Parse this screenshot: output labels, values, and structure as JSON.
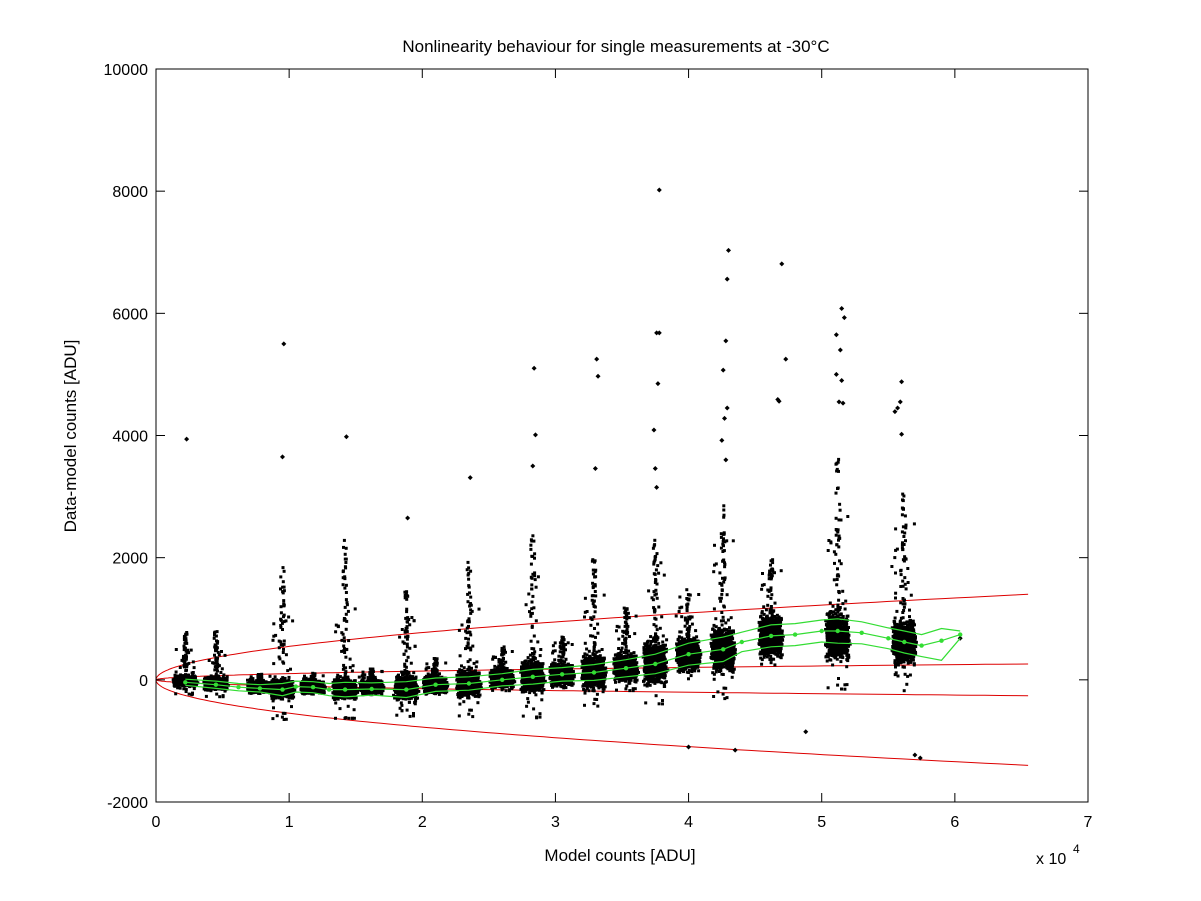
{
  "chart_data": {
    "type": "scatter",
    "title": "Nonlinearity behaviour for single measurements at -30°C",
    "xlabel": "Model counts [ADU]",
    "ylabel": "Data-model counts [ADU]",
    "x_exponent_label": "x 10",
    "x_exponent_power": "4",
    "xlim": [
      0,
      7
    ],
    "ylim": [
      -2000,
      10000
    ],
    "x_units_multiplier": 10000,
    "x_ticks": [
      0,
      1,
      2,
      3,
      4,
      5,
      6,
      7
    ],
    "x_tick_labels": [
      "0",
      "1",
      "2",
      "3",
      "4",
      "5",
      "6",
      "7"
    ],
    "y_ticks": [
      -2000,
      0,
      2000,
      4000,
      6000,
      8000,
      10000
    ],
    "y_tick_labels": [
      "-2000",
      "0",
      "2000",
      "4000",
      "6000",
      "8000",
      "10000"
    ],
    "grid": false,
    "colors": {
      "points": "#000000",
      "binned": "#33dd33",
      "envelope": "#dd0000"
    },
    "clusters": [
      {
        "x": 0.22,
        "center": -20,
        "spread": 90,
        "max": 820,
        "min": -260
      },
      {
        "x": 0.45,
        "center": -60,
        "spread": 110,
        "max": 790,
        "min": -300
      },
      {
        "x": 0.78,
        "center": -120,
        "spread": 100,
        "max": 100,
        "min": -300
      },
      {
        "x": 0.95,
        "center": -150,
        "spread": 160,
        "max": 1860,
        "min": -650
      },
      {
        "x": 1.18,
        "center": -120,
        "spread": 110,
        "max": 120,
        "min": -300
      },
      {
        "x": 1.42,
        "center": -150,
        "spread": 180,
        "max": 2320,
        "min": -630
      },
      {
        "x": 1.62,
        "center": -120,
        "spread": 120,
        "max": 180,
        "min": -400
      },
      {
        "x": 1.88,
        "center": -120,
        "spread": 220,
        "max": 1450,
        "min": -920
      },
      {
        "x": 2.1,
        "center": -80,
        "spread": 140,
        "max": 350,
        "min": -450
      },
      {
        "x": 2.35,
        "center": -60,
        "spread": 230,
        "max": 2020,
        "min": -720
      },
      {
        "x": 2.6,
        "center": 20,
        "spread": 160,
        "max": 550,
        "min": -450
      },
      {
        "x": 2.83,
        "center": 60,
        "spread": 270,
        "max": 2380,
        "min": -1000
      },
      {
        "x": 3.05,
        "center": 90,
        "spread": 190,
        "max": 700,
        "min": -400
      },
      {
        "x": 3.29,
        "center": 130,
        "spread": 300,
        "max": 2010,
        "min": -820
      },
      {
        "x": 3.53,
        "center": 200,
        "spread": 250,
        "max": 1200,
        "min": -700
      },
      {
        "x": 3.75,
        "center": 280,
        "spread": 380,
        "max": 2400,
        "min": -1000
      },
      {
        "x": 4.0,
        "center": 420,
        "spread": 290,
        "max": 1500,
        "min": -700
      },
      {
        "x": 4.26,
        "center": 500,
        "spread": 400,
        "max": 2900,
        "min": -1100
      },
      {
        "x": 4.62,
        "center": 720,
        "spread": 380,
        "max": 2000,
        "min": -400
      },
      {
        "x": 5.12,
        "center": 720,
        "spread": 430,
        "max": 3700,
        "min": -700
      },
      {
        "x": 5.62,
        "center": 620,
        "spread": 400,
        "max": 3050,
        "min": -1300
      }
    ],
    "outliers": [
      {
        "x": 0.23,
        "y": 3940
      },
      {
        "x": 0.96,
        "y": 5500
      },
      {
        "x": 0.95,
        "y": 3650
      },
      {
        "x": 1.43,
        "y": 3980
      },
      {
        "x": 1.89,
        "y": 2650
      },
      {
        "x": 2.36,
        "y": 3310
      },
      {
        "x": 2.84,
        "y": 5100
      },
      {
        "x": 2.85,
        "y": 4010
      },
      {
        "x": 2.83,
        "y": 3500
      },
      {
        "x": 3.31,
        "y": 5250
      },
      {
        "x": 3.32,
        "y": 4970
      },
      {
        "x": 3.3,
        "y": 3460
      },
      {
        "x": 3.78,
        "y": 8020
      },
      {
        "x": 3.76,
        "y": 5680
      },
      {
        "x": 3.78,
        "y": 5680
      },
      {
        "x": 3.77,
        "y": 4850
      },
      {
        "x": 3.74,
        "y": 4090
      },
      {
        "x": 3.75,
        "y": 3460
      },
      {
        "x": 3.76,
        "y": 3150
      },
      {
        "x": 4.3,
        "y": 7030
      },
      {
        "x": 4.29,
        "y": 6560
      },
      {
        "x": 4.28,
        "y": 5550
      },
      {
        "x": 4.26,
        "y": 5070
      },
      {
        "x": 4.29,
        "y": 4450
      },
      {
        "x": 4.27,
        "y": 4280
      },
      {
        "x": 4.25,
        "y": 3920
      },
      {
        "x": 4.28,
        "y": 3600
      },
      {
        "x": 4.7,
        "y": 6810
      },
      {
        "x": 4.73,
        "y": 5250
      },
      {
        "x": 4.67,
        "y": 4590
      },
      {
        "x": 4.68,
        "y": 4560
      },
      {
        "x": 5.15,
        "y": 6080
      },
      {
        "x": 5.17,
        "y": 5930
      },
      {
        "x": 5.11,
        "y": 5650
      },
      {
        "x": 5.14,
        "y": 5400
      },
      {
        "x": 5.11,
        "y": 5000
      },
      {
        "x": 5.15,
        "y": 4900
      },
      {
        "x": 5.13,
        "y": 4550
      },
      {
        "x": 5.16,
        "y": 4530
      },
      {
        "x": 5.55,
        "y": 4390
      },
      {
        "x": 5.6,
        "y": 4880
      },
      {
        "x": 5.59,
        "y": 4550
      },
      {
        "x": 5.57,
        "y": 4450
      },
      {
        "x": 5.6,
        "y": 4020
      },
      {
        "x": 5.7,
        "y": -1230
      },
      {
        "x": 5.74,
        "y": -1280
      },
      {
        "x": 4.0,
        "y": -1100
      },
      {
        "x": 4.35,
        "y": -1150
      },
      {
        "x": 4.88,
        "y": -850
      },
      {
        "x": 6.04,
        "y": 680
      }
    ],
    "binned_series": {
      "x": [
        0.22,
        0.45,
        0.62,
        0.78,
        0.95,
        1.05,
        1.18,
        1.3,
        1.42,
        1.62,
        1.88,
        2.1,
        2.35,
        2.6,
        2.83,
        3.05,
        3.29,
        3.53,
        3.75,
        4.0,
        4.26,
        4.4,
        4.62,
        4.8,
        5.0,
        5.12,
        5.3,
        5.5,
        5.62,
        5.75,
        5.9,
        6.04
      ],
      "mean": [
        -40,
        -80,
        -120,
        -140,
        -160,
        -110,
        -120,
        -160,
        -160,
        -150,
        -160,
        -80,
        -60,
        0,
        50,
        90,
        120,
        190,
        260,
        420,
        500,
        620,
        720,
        740,
        800,
        800,
        770,
        680,
        620,
        560,
        640,
        740
      ],
      "upper": [
        10,
        -20,
        -60,
        -80,
        -60,
        -20,
        -30,
        -60,
        -40,
        -50,
        -30,
        30,
        50,
        100,
        170,
        200,
        250,
        330,
        420,
        600,
        700,
        780,
        900,
        920,
        980,
        1000,
        950,
        850,
        800,
        740,
        840,
        800
      ],
      "lower": [
        -90,
        -140,
        -180,
        -200,
        -260,
        -200,
        -210,
        -260,
        -280,
        -250,
        -290,
        -190,
        -170,
        -100,
        -70,
        -20,
        -10,
        50,
        100,
        240,
        300,
        460,
        540,
        560,
        620,
        600,
        590,
        510,
        440,
        380,
        320,
        680
      ]
    },
    "envelope_lines": [
      {
        "name": "outer-upper",
        "a": 0,
        "b": 5.2,
        "c": 0.0
      },
      {
        "name": "outer-lower",
        "a": 0,
        "b": -5.2,
        "c": 0.0
      },
      {
        "name": "inner-upper",
        "a": 0,
        "b": 1.0,
        "c": 0.0
      },
      {
        "name": "inner-lower",
        "a": 0,
        "b": -1.0,
        "c": 0.0
      }
    ]
  }
}
